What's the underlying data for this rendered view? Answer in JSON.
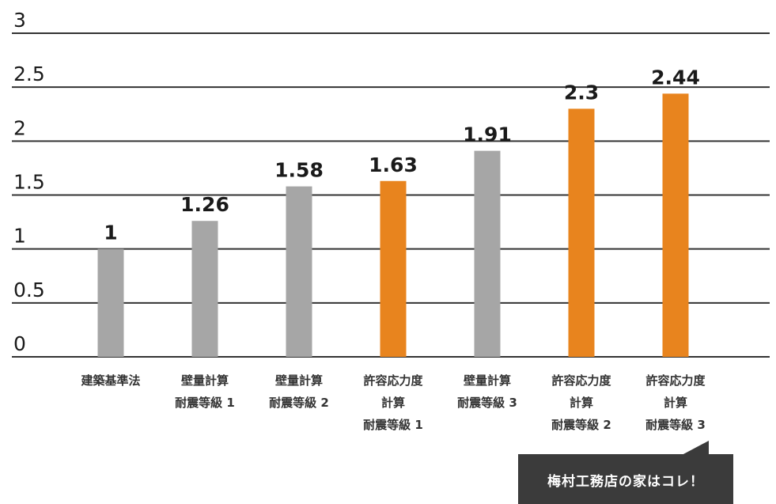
{
  "colors": {
    "standard_bar": "#a6a6a6",
    "highlight_bar": "#e8841e",
    "gridline": "#333333",
    "callout_bg": "#3b3b3b"
  },
  "chart_data": {
    "type": "bar",
    "title": "",
    "xlabel": "",
    "ylabel": "",
    "ylim": [
      0,
      3
    ],
    "yticks": [
      "0",
      "0.5",
      "1",
      "1.5",
      "2",
      "2.5",
      "3"
    ],
    "grid": true,
    "categories": [
      [
        "建築基準法"
      ],
      [
        "壁量計算",
        "耐震等級 1"
      ],
      [
        "壁量計算",
        "耐震等級 2"
      ],
      [
        "許容応力度",
        "計算",
        "耐震等級 1"
      ],
      [
        "壁量計算",
        "耐震等級 3"
      ],
      [
        "許容応力度",
        "計算",
        "耐震等級 2"
      ],
      [
        "許容応力度",
        "計算",
        "耐震等級 3"
      ]
    ],
    "values": [
      1,
      1.26,
      1.58,
      1.63,
      1.91,
      2.3,
      2.44
    ],
    "value_labels": [
      "1",
      "1.26",
      "1.58",
      "1.63",
      "1.91",
      "2.3",
      "2.44"
    ],
    "bar_colors": [
      "gray",
      "gray",
      "gray",
      "orange",
      "gray",
      "orange",
      "orange"
    ]
  },
  "callout": {
    "text": "梅村工務店の家はコレ！"
  }
}
